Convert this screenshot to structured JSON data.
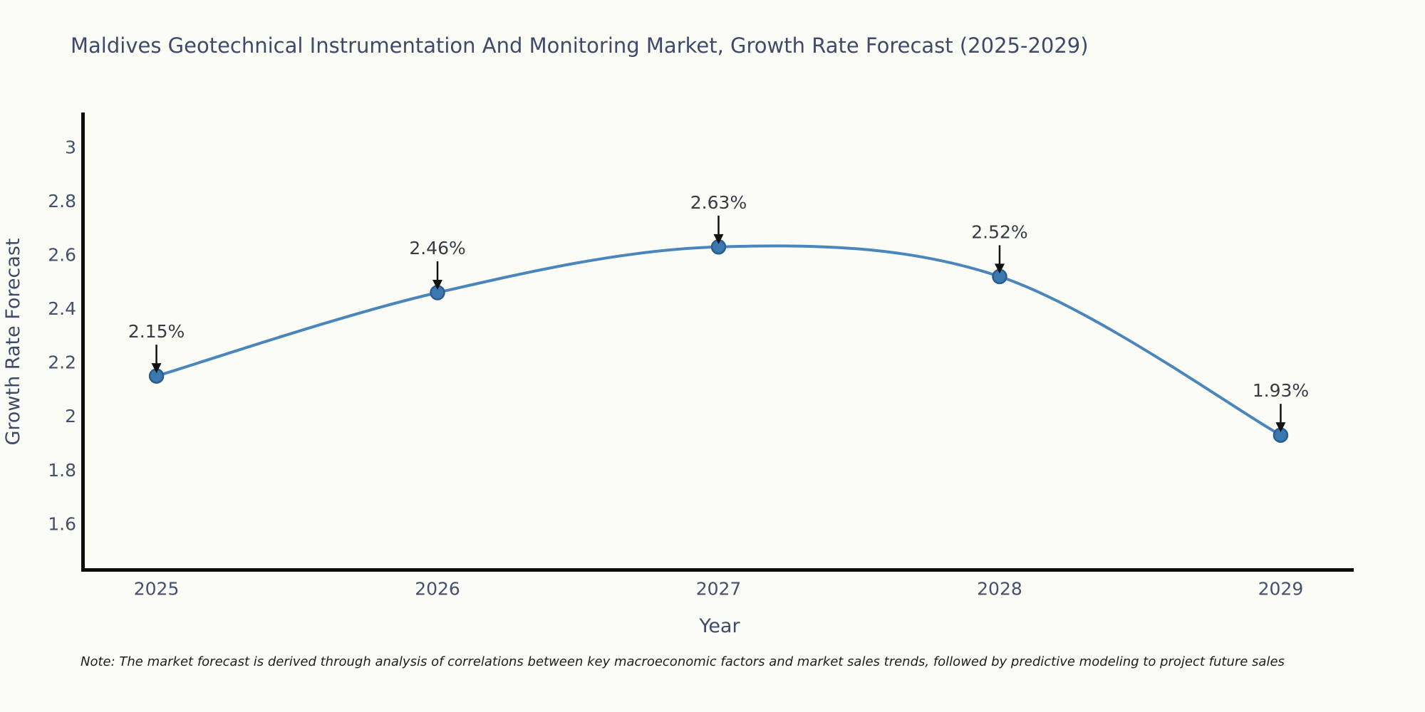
{
  "header": {
    "title": "Maldives Geotechnical Instrumentation And Monitoring Market, Growth Rate Forecast (2025-2029)"
  },
  "chart_data": {
    "type": "line",
    "title": "Maldives Geotechnical Instrumentation And Monitoring Market, Growth Rate Forecast (2025-2029)",
    "x": [
      "2025",
      "2026",
      "2027",
      "2028",
      "2029"
    ],
    "series": [
      {
        "name": "Growth Rate Forecast",
        "values": [
          2.15,
          2.46,
          2.63,
          2.52,
          1.93
        ]
      }
    ],
    "point_labels": [
      "2.15%",
      "2.46%",
      "2.63%",
      "2.52%",
      "1.93%"
    ],
    "xlabel": "Year",
    "ylabel": "Growth Rate Forecast",
    "ytick_labels": [
      "3",
      "2.8",
      "2.6",
      "2.4",
      "2.2",
      "2",
      "1.8",
      "1.6"
    ],
    "yticks": [
      3,
      2.8,
      2.6,
      2.4,
      2.2,
      2,
      1.8,
      1.6
    ],
    "ylim": [
      1.43,
      3.13
    ],
    "xlim_index": [
      -0.26,
      4.26
    ],
    "grid": false,
    "legend_position": "none",
    "line_shape": "spline",
    "colors": {
      "line": "#4a86bc",
      "marker_fill": "#3c78b0",
      "marker_edge": "#2c5d8d",
      "axis_line": "#0d0d0d",
      "tick_text": "#44506c",
      "axis_title_text": "#3e4a68",
      "annotation_text": "#363b45",
      "arrow": "#111111"
    }
  },
  "note": {
    "text": "Note: The market forecast is derived through analysis of correlations between key macroeconomic factors and market sales trends, followed by predictive modeling to project future sales"
  }
}
